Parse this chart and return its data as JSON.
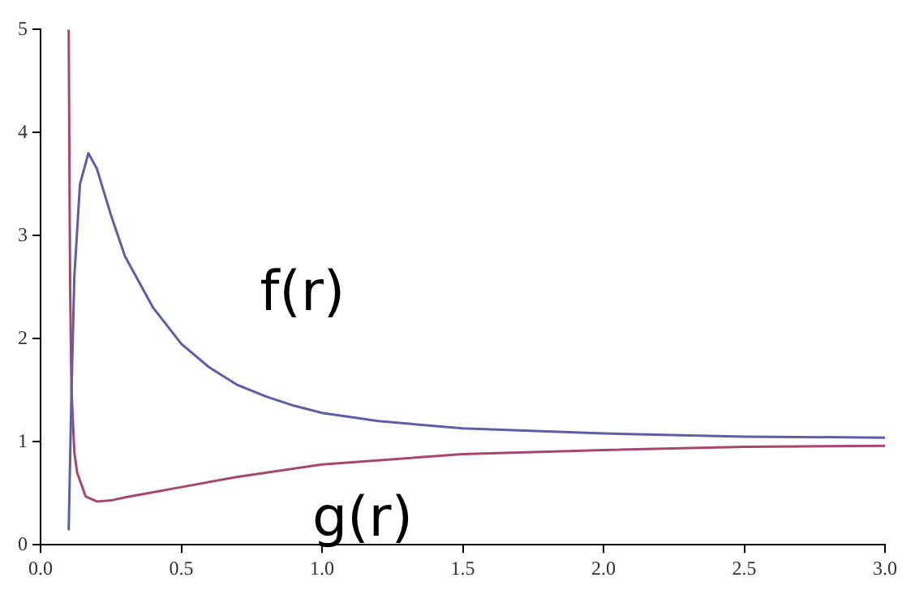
{
  "chart_data": {
    "type": "line",
    "xlim": [
      0,
      3
    ],
    "ylim": [
      0,
      5
    ],
    "xticks": [
      {
        "value": 0,
        "label": "0.0"
      },
      {
        "value": 0.5,
        "label": "0.5"
      },
      {
        "value": 1,
        "label": "1.0"
      },
      {
        "value": 1.5,
        "label": "1.5"
      },
      {
        "value": 2,
        "label": "2.0"
      },
      {
        "value": 2.5,
        "label": "2.5"
      },
      {
        "value": 3,
        "label": "3.0"
      }
    ],
    "yticks": [
      0,
      1,
      2,
      3,
      4,
      5
    ],
    "grid": false,
    "legend": false,
    "marker": "none",
    "line_style": "solid",
    "series": [
      {
        "name": "f(r)",
        "color": "#5c5fa8",
        "x": [
          0.1,
          0.11,
          0.12,
          0.14,
          0.17,
          0.2,
          0.25,
          0.3,
          0.4,
          0.5,
          0.6,
          0.7,
          0.8,
          0.9,
          1.0,
          1.2,
          1.5,
          2.0,
          2.5,
          3.0
        ],
        "values": [
          0.15,
          1.5,
          2.6,
          3.5,
          3.8,
          3.65,
          3.2,
          2.8,
          2.3,
          1.95,
          1.72,
          1.55,
          1.44,
          1.35,
          1.28,
          1.2,
          1.13,
          1.08,
          1.05,
          1.04
        ]
      },
      {
        "name": "g(r)",
        "color": "#a8466f",
        "x": [
          0.1,
          0.105,
          0.11,
          0.12,
          0.13,
          0.16,
          0.2,
          0.25,
          0.3,
          0.4,
          0.5,
          0.7,
          1.0,
          1.5,
          2.0,
          2.5,
          3.0
        ],
        "values": [
          5,
          2.5,
          1.5,
          0.9,
          0.7,
          0.47,
          0.42,
          0.43,
          0.46,
          0.51,
          0.56,
          0.66,
          0.78,
          0.88,
          0.92,
          0.95,
          0.96
        ]
      }
    ]
  }
}
